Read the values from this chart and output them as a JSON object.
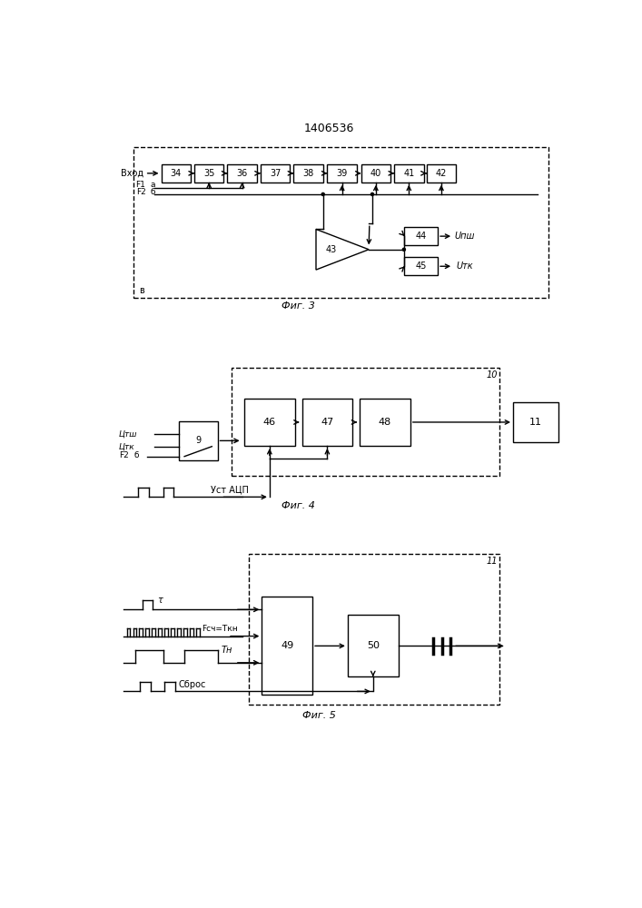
{
  "title": "1406536",
  "fig3_caption": "Фиг. 3",
  "fig4_caption": "Фиг. 4",
  "fig5_caption": "Фиг. 5",
  "bg_color": "#ffffff",
  "line_color": "#000000"
}
